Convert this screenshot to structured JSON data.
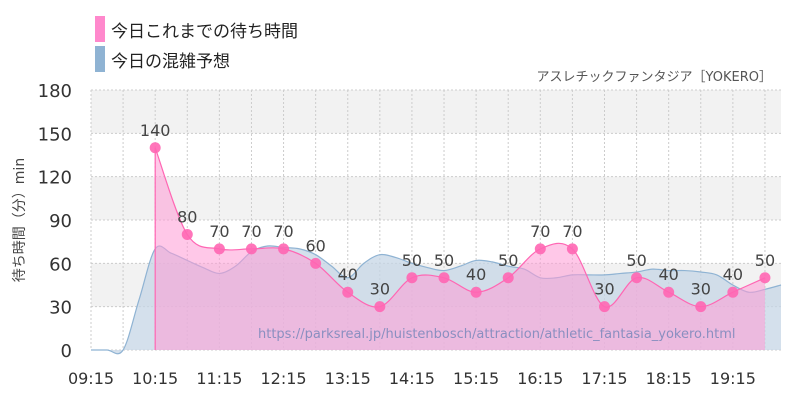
{
  "legend": {
    "items": [
      {
        "label": "今日これまでの待ち時間",
        "color": "#ff88cc"
      },
      {
        "label": "今日の混雑予想",
        "color": "#8fb3d3"
      }
    ]
  },
  "attraction_name": "アスレチックファンタジア［YOKERO］",
  "watermark_url": "https://parksreal.jp/huistenbosch/attraction/athletic_fantasia_yokero.html",
  "colors": {
    "actual_line": "#ff66b3",
    "actual_fill": "#ff9ad5",
    "forecast_line": "#8fb3d3",
    "forecast_fill": "#c5d6e6",
    "band": "#f2f2f2",
    "axis_text": "#333333",
    "label_text": "#444444"
  },
  "chart_data": {
    "type": "area",
    "ylabel": "待ち時間（分）min",
    "ylim": [
      0,
      180
    ],
    "yticks": [
      0,
      30,
      60,
      90,
      120,
      150,
      180
    ],
    "xlim": [
      "09:15",
      "20:00"
    ],
    "xticks": [
      "09:15",
      "10:15",
      "11:15",
      "12:15",
      "13:15",
      "14:15",
      "15:15",
      "16:15",
      "17:15",
      "18:15",
      "19:15"
    ],
    "grid": true,
    "legend_position": "top-left",
    "series": [
      {
        "name": "今日これまでの待ち時間",
        "x": [
          "10:15",
          "10:45",
          "11:15",
          "11:45",
          "12:15",
          "12:45",
          "13:15",
          "13:45",
          "14:15",
          "14:45",
          "15:15",
          "15:45",
          "16:15",
          "16:45",
          "17:15",
          "17:45",
          "18:15",
          "18:45",
          "19:15",
          "19:45"
        ],
        "values": [
          140,
          80,
          70,
          70,
          70,
          60,
          40,
          30,
          50,
          50,
          40,
          50,
          70,
          70,
          30,
          50,
          40,
          30,
          40,
          50
        ]
      },
      {
        "name": "今日の混雑予想",
        "x": [
          "09:15",
          "09:30",
          "09:45",
          "10:00",
          "10:15",
          "10:30",
          "10:45",
          "11:00",
          "11:15",
          "11:30",
          "11:45",
          "12:00",
          "12:15",
          "12:30",
          "12:45",
          "13:00",
          "13:15",
          "13:30",
          "13:45",
          "14:00",
          "14:15",
          "14:30",
          "14:45",
          "15:00",
          "15:15",
          "15:30",
          "15:45",
          "16:00",
          "16:15",
          "16:30",
          "16:45",
          "17:00",
          "17:15",
          "17:30",
          "17:45",
          "18:00",
          "18:15",
          "18:30",
          "18:45",
          "19:00",
          "19:15",
          "19:30",
          "19:45",
          "20:00"
        ],
        "values": [
          0,
          0,
          0,
          35,
          70,
          67,
          62,
          57,
          53,
          58,
          68,
          72,
          71,
          70,
          66,
          58,
          50,
          60,
          66,
          64,
          60,
          57,
          55,
          58,
          62,
          61,
          58,
          56,
          50,
          50,
          52,
          52,
          52,
          53,
          54,
          56,
          55,
          55,
          54,
          52,
          45,
          40,
          42,
          45
        ]
      }
    ]
  }
}
